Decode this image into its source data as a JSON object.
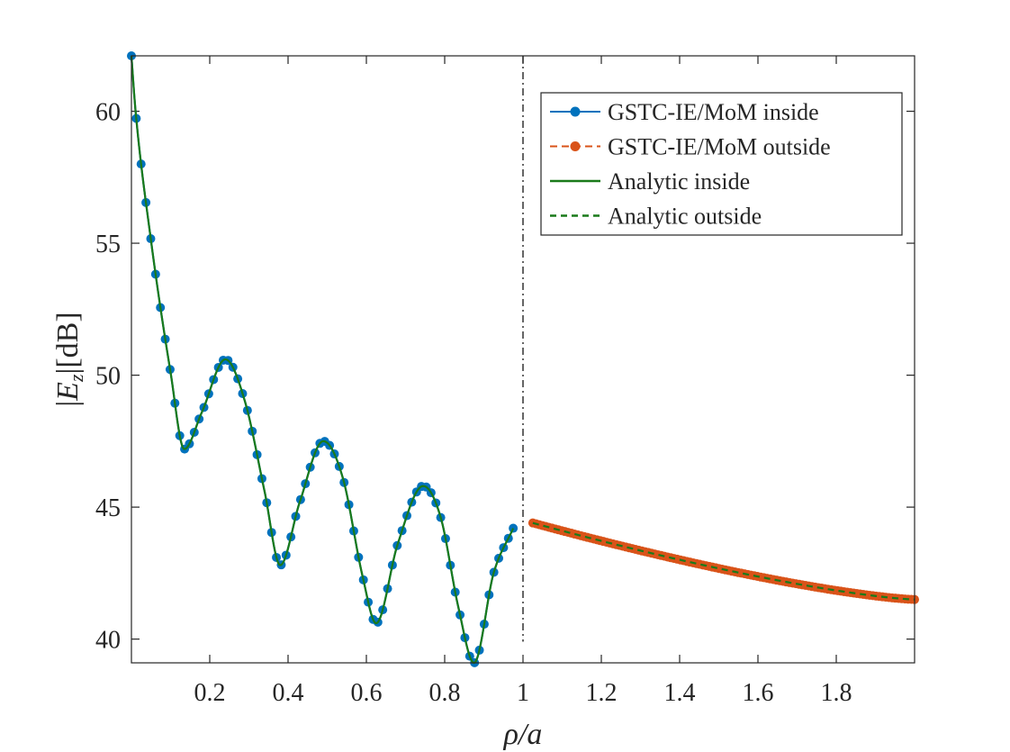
{
  "chart_data": {
    "type": "line",
    "title": "",
    "xlabel": "ρ/a",
    "ylabel_parts": {
      "bar_left": "|",
      "var": "E",
      "sub": "z",
      "bar_right": "|",
      "unit": "[dB]"
    },
    "xlim": [
      0,
      2
    ],
    "ylim": [
      39.1,
      62.1
    ],
    "x_ticks": [
      0.2,
      0.4,
      0.6,
      0.8,
      1,
      1.2,
      1.4,
      1.6,
      1.8
    ],
    "x_tick_labels": [
      "0.2",
      "0.4",
      "0.6",
      "0.8",
      "1",
      "1.2",
      "1.4",
      "1.6",
      "1.8"
    ],
    "y_ticks": [
      40,
      45,
      50,
      55,
      60
    ],
    "y_tick_labels": [
      "40",
      "45",
      "50",
      "55",
      "60"
    ],
    "boundary_line_x": 1,
    "legend_position": "top-right",
    "colors": {
      "inside_mom": "#0072BD",
      "outside_mom": "#D95319",
      "analytic": "#1a7a1a",
      "axis": "#262626",
      "boundary": "#000000"
    },
    "series": [
      {
        "name": "GSTC-IE/MoM inside",
        "style": "solid-with-markers",
        "x_range": [
          0,
          0.975
        ],
        "n_points": 80,
        "model": "decaying oscillation: peaks 50.6 @0.24, 47.5 @0.49, 45.8 @0.745; troughs 47.2 @0.135, 42.8 @0.38, 40.6 @0.625, 39.1 @0.875; start 62.1, end 44.2"
      },
      {
        "name": "GSTC-IE/MoM outside",
        "style": "dashed-with-markers",
        "x_range": [
          1.025,
          2.0
        ],
        "start_value": 44.4,
        "end_value": 41.5,
        "n_points": 120
      },
      {
        "name": "Analytic inside",
        "style": "solid",
        "x_range": [
          0,
          0.975
        ]
      },
      {
        "name": "Analytic outside",
        "style": "dashed",
        "x_range": [
          1.025,
          2.0
        ]
      }
    ],
    "key_points": {
      "x": [
        0.0,
        0.01,
        0.05,
        0.1,
        0.135,
        0.18,
        0.24,
        0.29,
        0.34,
        0.38,
        0.43,
        0.49,
        0.54,
        0.59,
        0.625,
        0.68,
        0.745,
        0.79,
        0.835,
        0.875,
        0.925,
        0.975
      ],
      "y": [
        62.1,
        60.1,
        55.1,
        50.1,
        47.2,
        48.6,
        50.6,
        49.0,
        45.6,
        42.8,
        45.2,
        47.5,
        46.1,
        42.4,
        40.6,
        43.6,
        45.8,
        44.6,
        41.2,
        39.1,
        42.5,
        44.2
      ]
    }
  }
}
